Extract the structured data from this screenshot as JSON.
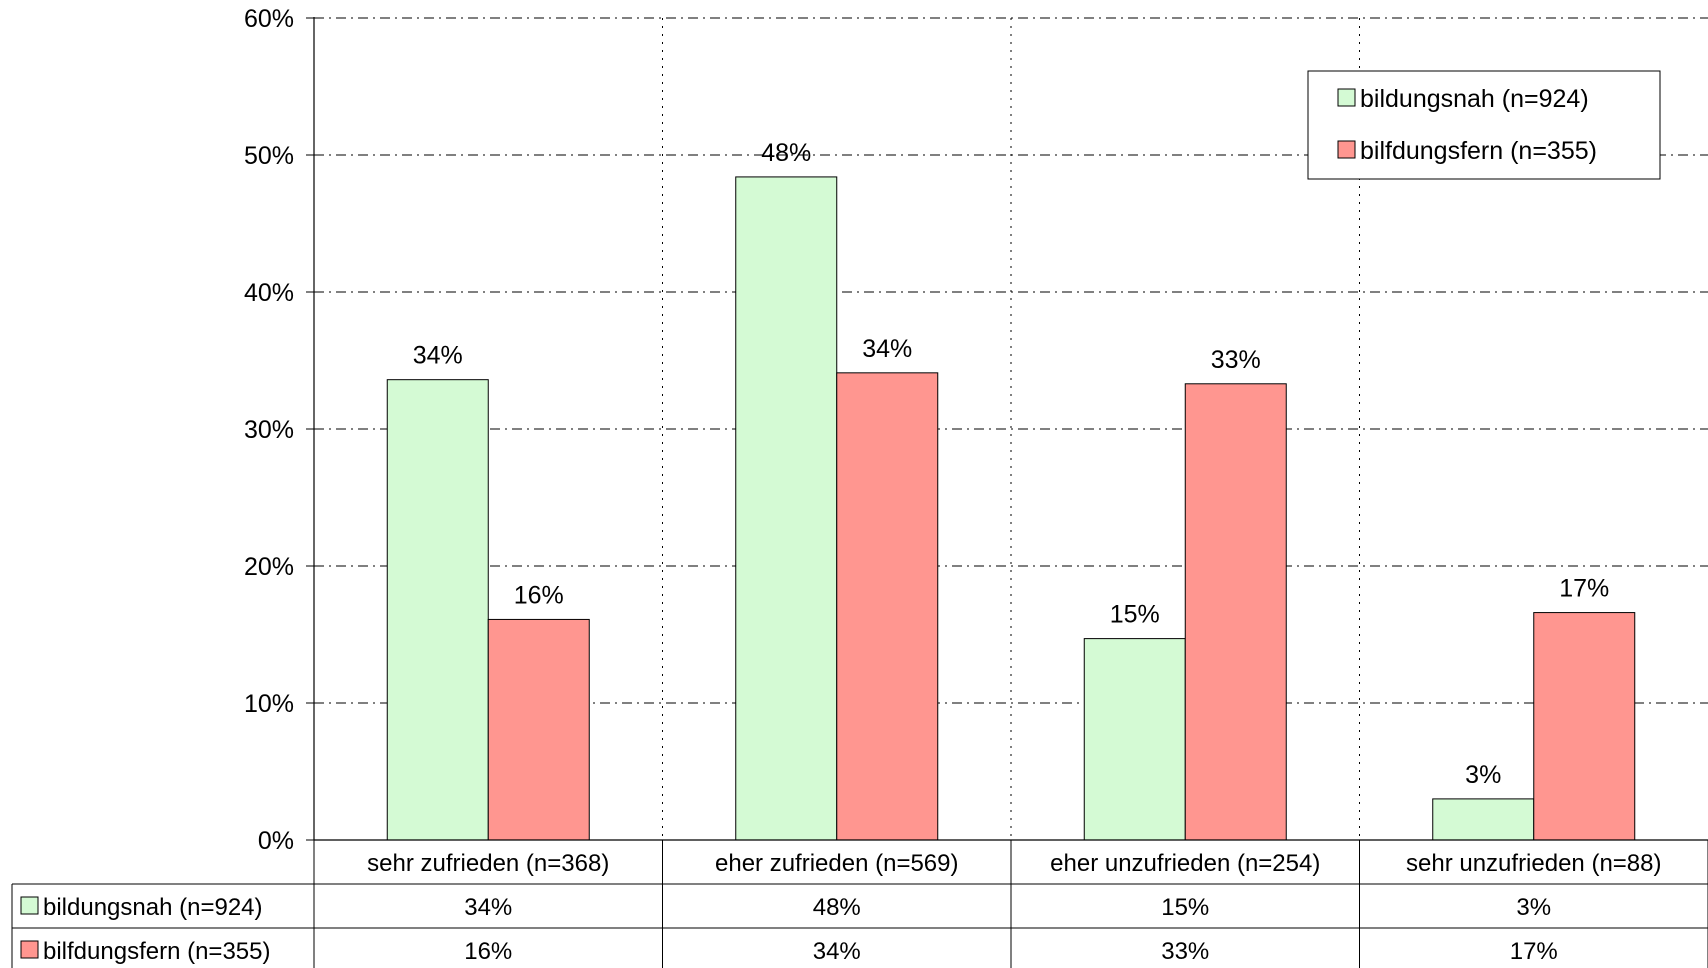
{
  "chart_data": {
    "type": "bar",
    "categories": [
      "sehr zufrieden (n=368)",
      "eher zufrieden (n=569)",
      "eher unzufrieden (n=254)",
      "sehr unzufrieden (n=88)"
    ],
    "series": [
      {
        "name": "bildungsnah (n=924)",
        "color": "#d4fad4",
        "values": [
          33.6,
          48.4,
          14.7,
          3.0
        ],
        "labels": [
          "34%",
          "48%",
          "15%",
          "3%"
        ]
      },
      {
        "name": "bilfdungsfern (n=355)",
        "color": "#ff9690",
        "values": [
          16.1,
          34.1,
          33.3,
          16.6
        ],
        "labels": [
          "16%",
          "34%",
          "33%",
          "17%"
        ]
      }
    ],
    "y_ticks": [
      "0%",
      "10%",
      "20%",
      "30%",
      "40%",
      "50%",
      "60%"
    ],
    "ylim": [
      0,
      60
    ],
    "grid": "dash-dot horizontal, dotted vertical",
    "legend_position": "top-right",
    "data_table": true
  }
}
